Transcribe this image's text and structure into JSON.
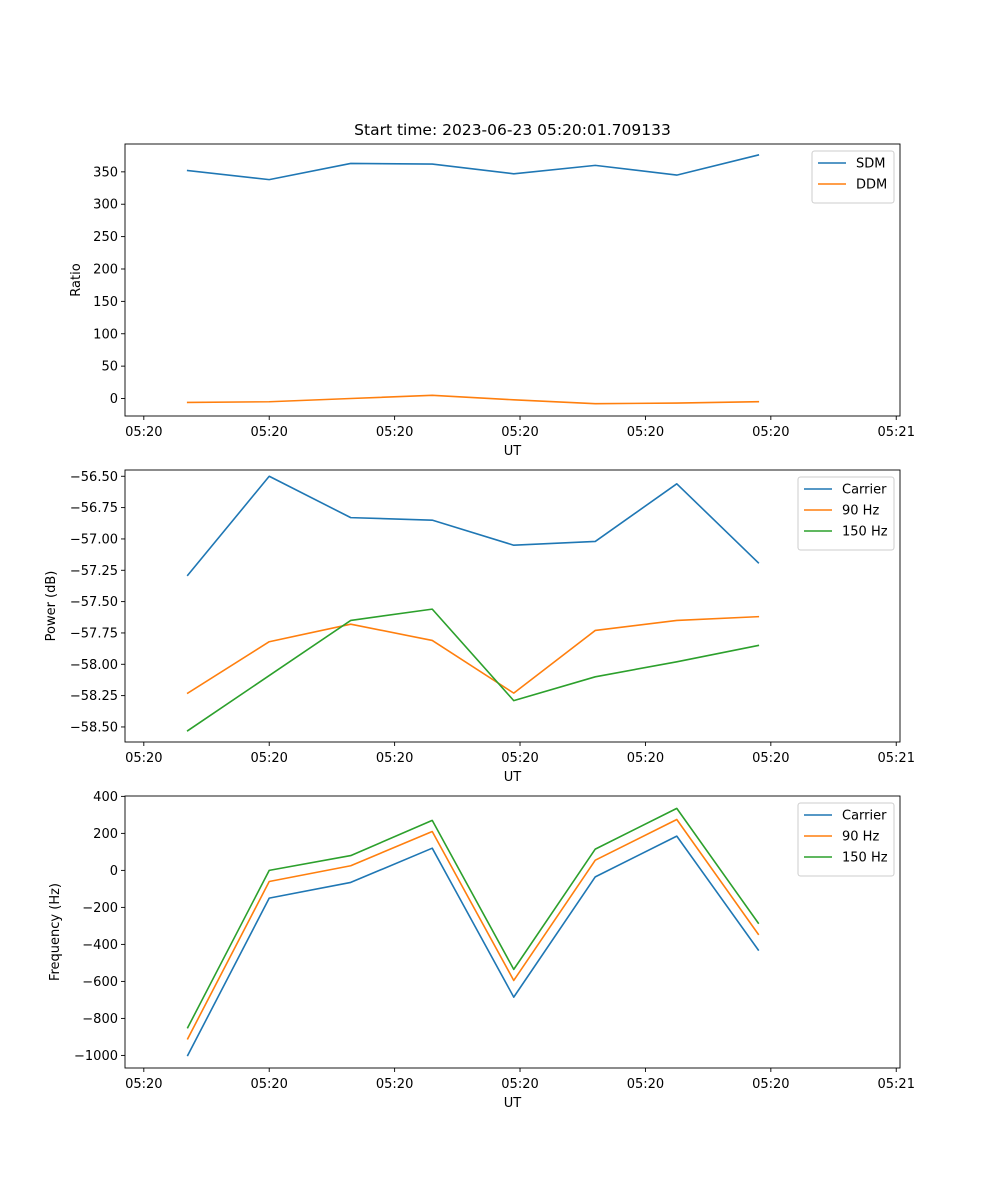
{
  "title": "Start time: 2023-06-23 05:20:01.709133",
  "colors": {
    "blue": "#1f77b4",
    "orange": "#ff7f0e",
    "green": "#2ca02c"
  },
  "chart_data": [
    {
      "type": "line",
      "title": "Start time: 2023-06-23 05:20:01.709133",
      "xlabel": "UT",
      "ylabel": "Ratio",
      "x_tick_labels": [
        "05:20",
        "05:20",
        "05:20",
        "05:20",
        "05:20",
        "05:20",
        "05:21"
      ],
      "xlim": [
        0,
        6.18
      ],
      "ylim": [
        -27,
        393
      ],
      "y_ticks": [
        0,
        50,
        100,
        150,
        200,
        250,
        300,
        350
      ],
      "grid": false,
      "legend_position": "top-right",
      "x": [
        0.5,
        1.15,
        1.8,
        2.45,
        3.1,
        3.75,
        4.4,
        5.05
      ],
      "series": [
        {
          "name": "SDM",
          "color": "#1f77b4",
          "values": [
            352,
            338,
            363,
            362,
            347,
            360,
            345,
            376
          ]
        },
        {
          "name": "DDM",
          "color": "#ff7f0e",
          "values": [
            -6,
            -5,
            0,
            5,
            -2,
            -8,
            -7,
            -5
          ]
        }
      ]
    },
    {
      "type": "line",
      "title": "",
      "xlabel": "UT",
      "ylabel": "Power (dB)",
      "x_tick_labels": [
        "05:20",
        "05:20",
        "05:20",
        "05:20",
        "05:20",
        "05:20",
        "05:21"
      ],
      "xlim": [
        0,
        6.18
      ],
      "ylim": [
        -58.62,
        -56.45
      ],
      "y_ticks": [
        -58.5,
        -58.25,
        -58.0,
        -57.75,
        -57.5,
        -57.25,
        -57.0,
        -56.75,
        -56.5
      ],
      "y_tick_labels": [
        "−58.50",
        "−58.25",
        "−58.00",
        "−57.75",
        "−57.50",
        "−57.25",
        "−57.00",
        "−56.75",
        "−56.50"
      ],
      "grid": false,
      "legend_position": "top-right",
      "x": [
        0.5,
        1.15,
        1.8,
        2.45,
        3.1,
        3.75,
        4.4,
        5.05
      ],
      "series": [
        {
          "name": "Carrier",
          "color": "#1f77b4",
          "values": [
            -57.29,
            -56.5,
            -56.83,
            -56.85,
            -57.05,
            -57.02,
            -56.56,
            -57.19
          ]
        },
        {
          "name": "90 Hz",
          "color": "#ff7f0e",
          "values": [
            -58.23,
            -57.82,
            -57.68,
            -57.81,
            -58.23,
            -57.73,
            -57.65,
            -57.62
          ]
        },
        {
          "name": "150 Hz",
          "color": "#2ca02c",
          "values": [
            -58.53,
            -58.09,
            -57.65,
            -57.56,
            -58.29,
            -58.1,
            -57.98,
            -57.85
          ]
        }
      ]
    },
    {
      "type": "line",
      "title": "",
      "xlabel": "UT",
      "ylabel": "Frequency (Hz)",
      "x_tick_labels": [
        "05:20",
        "05:20",
        "05:20",
        "05:20",
        "05:20",
        "05:20",
        "05:21"
      ],
      "xlim": [
        0,
        6.18
      ],
      "ylim": [
        -1068,
        402
      ],
      "y_ticks": [
        -1000,
        -800,
        -600,
        -400,
        -200,
        0,
        200,
        400
      ],
      "y_tick_labels": [
        "−1000",
        "−800",
        "−600",
        "−400",
        "−200",
        "0",
        "200",
        "400"
      ],
      "grid": false,
      "legend_position": "top-right",
      "x": [
        0.5,
        1.15,
        1.8,
        2.45,
        3.1,
        3.75,
        4.4,
        5.05
      ],
      "series": [
        {
          "name": "Carrier",
          "color": "#1f77b4",
          "values": [
            -1000,
            -150,
            -65,
            120,
            -685,
            -35,
            185,
            -430
          ]
        },
        {
          "name": "90 Hz",
          "color": "#ff7f0e",
          "values": [
            -910,
            -60,
            25,
            210,
            -595,
            55,
            275,
            -345
          ]
        },
        {
          "name": "150 Hz",
          "color": "#2ca02c",
          "values": [
            -850,
            0,
            80,
            270,
            -535,
            115,
            335,
            -285
          ]
        }
      ]
    }
  ]
}
